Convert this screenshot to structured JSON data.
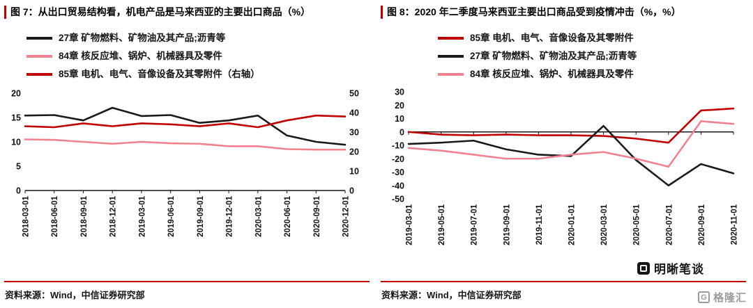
{
  "figures": [
    {
      "title": "图 7：从出口贸易结构看，机电产品是马来西亚的主要出口商品（%）",
      "source": "资料来源：Wind，中信证券研究部",
      "legend": [
        {
          "label": "27章 矿物燃料、矿物油及其产品;沥青等",
          "color": "#1a1a1a"
        },
        {
          "label": "84章 核反应堆、锅炉、机械器具及零件",
          "color": "#f0828f"
        },
        {
          "label": "85章 电机、电气、音像设备及其零附件（右轴）",
          "color": "#c00000"
        }
      ]
    },
    {
      "title": "图 8：2020 年二季度马来西亚主要出口商品受到疫情冲击（%，%）",
      "source": "资料来源：Wind，中信证券研究部",
      "legend": [
        {
          "label": "85章 电机、电气、音像设备及其零附件",
          "color": "#c00000"
        },
        {
          "label": "27章 矿物燃料、矿物油及其产品;沥青等",
          "color": "#1a1a1a"
        },
        {
          "label": "84章 核反应堆、锅炉、机械器具及零件",
          "color": "#f0828f"
        }
      ]
    }
  ],
  "watermarks": {
    "mingxi_label": "明晰笔谈",
    "gelonghui_label": "格隆汇",
    "gelonghui_initial": "G"
  },
  "chart_data": [
    {
      "type": "line",
      "title": "图 7：从出口贸易结构看，机电产品是马来西亚的主要出口商品（%）",
      "categories": [
        "2018-03-01",
        "2018-06-01",
        "2018-09-01",
        "2018-12-01",
        "2019-03-01",
        "2019-06-01",
        "2019-09-01",
        "2019-12-01",
        "2020-03-01",
        "2020-06-01",
        "2020-09-01",
        "2020-12-01"
      ],
      "y_left": {
        "min": 0,
        "max": 20,
        "ticks": [
          0,
          5,
          10,
          15,
          20
        ]
      },
      "y_right": {
        "min": 0,
        "max": 50,
        "ticks": [
          0,
          10,
          20,
          30,
          40,
          50
        ]
      },
      "grid": false,
      "legend_position": "top-left",
      "series": [
        {
          "name": "27章 矿物燃料、矿物油及其产品;沥青等",
          "axis": "left",
          "color": "#1a1a1a",
          "values": [
            15.4,
            15.5,
            14.4,
            17.0,
            15.3,
            15.5,
            13.9,
            14.4,
            15.4,
            11.3,
            10.0,
            9.4
          ]
        },
        {
          "name": "84章 核反应堆、锅炉、机械器具及零件",
          "axis": "left",
          "color": "#f0828f",
          "values": [
            10.5,
            10.4,
            10.0,
            9.6,
            10.0,
            9.7,
            9.6,
            9.1,
            9.1,
            8.5,
            8.4,
            8.4
          ]
        },
        {
          "name": "85章 电机、电气、音像设备及其零附件（右轴）",
          "axis": "right",
          "color": "#c00000",
          "values": [
            33.0,
            32.5,
            34.5,
            33.0,
            34.5,
            34.0,
            33.0,
            34.5,
            32.5,
            36.0,
            38.5,
            38.0
          ]
        }
      ]
    },
    {
      "type": "line",
      "title": "图 8：2020 年二季度马来西亚主要出口商品受到疫情冲击（%，%）",
      "categories": [
        "2019-03-01",
        "2019-05-01",
        "2019-07-01",
        "2019-09-01",
        "2019-11-01",
        "2020-01-01",
        "2020-03-01",
        "2020-05-01",
        "2020-07-01",
        "2020-09-01",
        "2020-11-01"
      ],
      "y_left": {
        "min": -50,
        "max": 30,
        "ticks": [
          30,
          20,
          10,
          0,
          -10,
          -20,
          -30,
          -40,
          -50
        ]
      },
      "grid": false,
      "legend_position": "top-left",
      "series": [
        {
          "name": "85章 电机、电气、音像设备及其零附件",
          "axis": "left",
          "color": "#c00000",
          "values": [
            0,
            -2,
            -2.5,
            -2,
            -2.5,
            -2.5,
            -3,
            -5,
            -8,
            16,
            17.5
          ]
        },
        {
          "name": "27章 矿物燃料、矿物油及其产品;沥青等",
          "axis": "left",
          "color": "#1a1a1a",
          "values": [
            -9,
            -8,
            -6.5,
            -13,
            -17,
            -18,
            4.5,
            -21,
            -40,
            -24,
            -31
          ]
        },
        {
          "name": "84章 核反应堆、锅炉、机械器具及零件",
          "axis": "left",
          "color": "#f0828f",
          "values": [
            -12,
            -14,
            -17,
            -20,
            -20,
            -17,
            -15,
            -20,
            -26,
            8,
            6
          ]
        }
      ]
    }
  ]
}
